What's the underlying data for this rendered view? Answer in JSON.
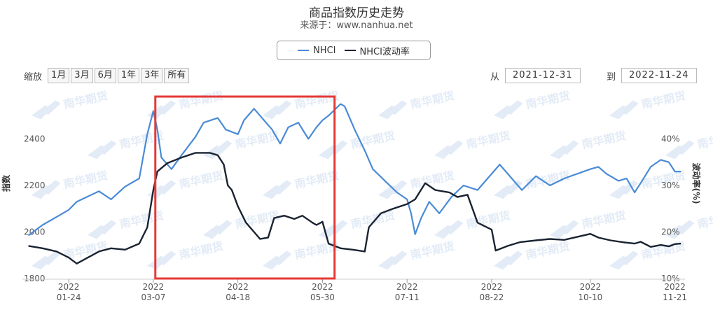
{
  "header": {
    "title": "商品指数历史走势",
    "subtitle": "来源于：www.nanhua.net"
  },
  "legend": [
    {
      "label": "NHCI",
      "color": "#4a8bd6"
    },
    {
      "label": "NHCI波动率",
      "color": "#1a2332"
    }
  ],
  "zoom": {
    "label": "缩放",
    "buttons": [
      "1月",
      "3月",
      "6月",
      "1年",
      "3年",
      "所有"
    ]
  },
  "range": {
    "from_label": "从",
    "from_value": "2021-12-31",
    "to_label": "到",
    "to_value": "2022-11-24"
  },
  "chart_data": {
    "type": "line",
    "title": "商品指数历史走势",
    "subtitle": "来源于：www.nanhua.net",
    "y_left": {
      "label": "指数",
      "ticks": [
        "1800",
        "2000",
        "2200",
        "2400"
      ],
      "range": [
        1800,
        2600
      ]
    },
    "y_right": {
      "label": "波动率(%)",
      "ticks": [
        "10%",
        "20%",
        "30%",
        "40%"
      ],
      "range": [
        10,
        50
      ]
    },
    "x_ticks": [
      {
        "year": "2022",
        "md": "01-24"
      },
      {
        "year": "2022",
        "md": "03-07"
      },
      {
        "year": "2022",
        "md": "04-18"
      },
      {
        "year": "2022",
        "md": "05-30"
      },
      {
        "year": "2022",
        "md": "07-11"
      },
      {
        "year": "2022",
        "md": "08-22"
      },
      {
        "year": "2022",
        "md": "10-10"
      },
      {
        "year": "2022",
        "md": "11-21"
      }
    ],
    "series": [
      {
        "name": "NHCI",
        "axis": "left",
        "color": "#4a8bd6",
        "points": [
          [
            "2022-01-04",
            1985
          ],
          [
            "2022-01-11",
            2030
          ],
          [
            "2022-01-18",
            2065
          ],
          [
            "2022-01-24",
            2095
          ],
          [
            "2022-01-28",
            2130
          ],
          [
            "2022-02-08",
            2175
          ],
          [
            "2022-02-14",
            2140
          ],
          [
            "2022-02-21",
            2195
          ],
          [
            "2022-02-28",
            2230
          ],
          [
            "2022-03-04",
            2420
          ],
          [
            "2022-03-07",
            2520
          ],
          [
            "2022-03-09",
            2440
          ],
          [
            "2022-03-11",
            2320
          ],
          [
            "2022-03-16",
            2270
          ],
          [
            "2022-03-21",
            2330
          ],
          [
            "2022-03-28",
            2410
          ],
          [
            "2022-04-01",
            2470
          ],
          [
            "2022-04-08",
            2490
          ],
          [
            "2022-04-12",
            2440
          ],
          [
            "2022-04-18",
            2420
          ],
          [
            "2022-04-21",
            2480
          ],
          [
            "2022-04-26",
            2530
          ],
          [
            "2022-04-29",
            2500
          ],
          [
            "2022-05-05",
            2440
          ],
          [
            "2022-05-09",
            2380
          ],
          [
            "2022-05-13",
            2450
          ],
          [
            "2022-05-18",
            2470
          ],
          [
            "2022-05-23",
            2400
          ],
          [
            "2022-05-27",
            2450
          ],
          [
            "2022-05-30",
            2480
          ],
          [
            "2022-06-02",
            2500
          ],
          [
            "2022-06-08",
            2550
          ],
          [
            "2022-06-10",
            2540
          ],
          [
            "2022-06-15",
            2440
          ],
          [
            "2022-06-20",
            2350
          ],
          [
            "2022-06-24",
            2270
          ],
          [
            "2022-06-30",
            2220
          ],
          [
            "2022-07-06",
            2170
          ],
          [
            "2022-07-11",
            2140
          ],
          [
            "2022-07-13",
            2080
          ],
          [
            "2022-07-15",
            1990
          ],
          [
            "2022-07-18",
            2060
          ],
          [
            "2022-07-22",
            2130
          ],
          [
            "2022-07-27",
            2080
          ],
          [
            "2022-08-02",
            2150
          ],
          [
            "2022-08-08",
            2200
          ],
          [
            "2022-08-15",
            2180
          ],
          [
            "2022-08-22",
            2250
          ],
          [
            "2022-08-26",
            2290
          ],
          [
            "2022-09-01",
            2230
          ],
          [
            "2022-09-06",
            2180
          ],
          [
            "2022-09-13",
            2240
          ],
          [
            "2022-09-20",
            2200
          ],
          [
            "2022-09-27",
            2230
          ],
          [
            "2022-10-10",
            2270
          ],
          [
            "2022-10-14",
            2280
          ],
          [
            "2022-10-18",
            2250
          ],
          [
            "2022-10-24",
            2220
          ],
          [
            "2022-10-28",
            2230
          ],
          [
            "2022-11-01",
            2170
          ],
          [
            "2022-11-04",
            2210
          ],
          [
            "2022-11-09",
            2280
          ],
          [
            "2022-11-14",
            2310
          ],
          [
            "2022-11-18",
            2300
          ],
          [
            "2022-11-21",
            2260
          ],
          [
            "2022-11-24",
            2260
          ]
        ]
      },
      {
        "name": "NHCI波动率",
        "axis": "right",
        "color": "#1a2332",
        "points": [
          [
            "2022-01-04",
            17
          ],
          [
            "2022-01-11",
            16.5
          ],
          [
            "2022-01-18",
            15.8
          ],
          [
            "2022-01-24",
            14.5
          ],
          [
            "2022-01-28",
            13.2
          ],
          [
            "2022-02-08",
            15.8
          ],
          [
            "2022-02-14",
            16.5
          ],
          [
            "2022-02-21",
            16.2
          ],
          [
            "2022-02-28",
            17.5
          ],
          [
            "2022-03-04",
            21
          ],
          [
            "2022-03-07",
            29
          ],
          [
            "2022-03-09",
            33
          ],
          [
            "2022-03-14",
            34.8
          ],
          [
            "2022-03-21",
            36
          ],
          [
            "2022-03-28",
            37
          ],
          [
            "2022-04-04",
            37
          ],
          [
            "2022-04-08",
            36.5
          ],
          [
            "2022-04-11",
            34.5
          ],
          [
            "2022-04-13",
            30
          ],
          [
            "2022-04-15",
            29
          ],
          [
            "2022-04-18",
            25.5
          ],
          [
            "2022-04-22",
            22
          ],
          [
            "2022-04-26",
            20
          ],
          [
            "2022-04-29",
            18.5
          ],
          [
            "2022-05-03",
            18.8
          ],
          [
            "2022-05-06",
            23
          ],
          [
            "2022-05-11",
            23.5
          ],
          [
            "2022-05-16",
            22.8
          ],
          [
            "2022-05-20",
            23.5
          ],
          [
            "2022-05-25",
            22
          ],
          [
            "2022-05-27",
            21.5
          ],
          [
            "2022-05-30",
            22.2
          ],
          [
            "2022-06-02",
            17.5
          ],
          [
            "2022-06-08",
            16.5
          ],
          [
            "2022-06-14",
            16.2
          ],
          [
            "2022-06-20",
            15.8
          ],
          [
            "2022-06-22",
            21
          ],
          [
            "2022-06-28",
            24
          ],
          [
            "2022-07-04",
            25
          ],
          [
            "2022-07-11",
            26
          ],
          [
            "2022-07-15",
            27
          ],
          [
            "2022-07-20",
            30.5
          ],
          [
            "2022-07-25",
            29
          ],
          [
            "2022-08-01",
            28.5
          ],
          [
            "2022-08-05",
            27.5
          ],
          [
            "2022-08-10",
            28
          ],
          [
            "2022-08-15",
            22
          ],
          [
            "2022-08-22",
            20.5
          ],
          [
            "2022-08-24",
            16
          ],
          [
            "2022-08-30",
            17
          ],
          [
            "2022-09-05",
            17.8
          ],
          [
            "2022-09-13",
            18.2
          ],
          [
            "2022-09-20",
            18.5
          ],
          [
            "2022-09-27",
            18.3
          ],
          [
            "2022-10-10",
            19.6
          ],
          [
            "2022-10-14",
            18.8
          ],
          [
            "2022-10-20",
            18.2
          ],
          [
            "2022-10-26",
            17.8
          ],
          [
            "2022-11-01",
            17.5
          ],
          [
            "2022-11-04",
            17.9
          ],
          [
            "2022-11-09",
            16.8
          ],
          [
            "2022-11-14",
            17.2
          ],
          [
            "2022-11-18",
            16.9
          ],
          [
            "2022-11-21",
            17.4
          ],
          [
            "2022-11-24",
            17.5
          ]
        ]
      }
    ],
    "highlight_box": {
      "from": "2022-03-08",
      "to": "2022-06-05",
      "color": "#e53935"
    },
    "watermark": "南华期货"
  }
}
